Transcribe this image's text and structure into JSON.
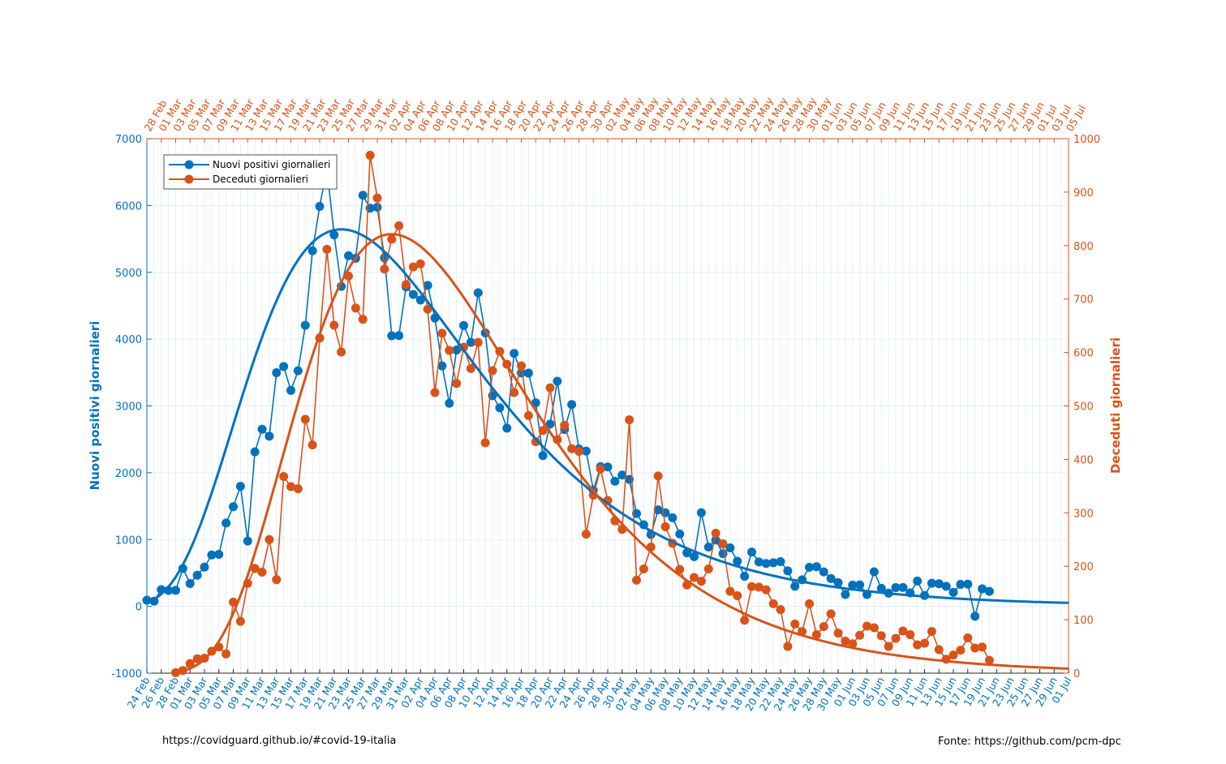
{
  "chart_data": {
    "type": "line",
    "ylabel_left": "Nuovi positivi giornalieri",
    "ylabel_right": "Deceduti giornalieri",
    "ylim_left": [
      -1000,
      7000
    ],
    "yticks_left": [
      -1000,
      0,
      1000,
      2000,
      3000,
      4000,
      5000,
      6000,
      7000
    ],
    "ylim_right": [
      0,
      1000
    ],
    "yticks_right": [
      0,
      100,
      200,
      300,
      400,
      500,
      600,
      700,
      800,
      900,
      1000
    ],
    "bottom_axis": {
      "start_date": "2020-02-24",
      "end_date": "2020-07-01",
      "tick_labels": [
        "24 Feb",
        "26 Feb",
        "28 Feb",
        "01 Mar",
        "03 Mar",
        "05 Mar",
        "07 Mar",
        "09 Mar",
        "11 Mar",
        "13 Mar",
        "15 Mar",
        "17 Mar",
        "19 Mar",
        "21 Mar",
        "23 Mar",
        "25 Mar",
        "27 Mar",
        "29 Mar",
        "31 Mar",
        "02 Apr",
        "04 Apr",
        "06 Apr",
        "08 Apr",
        "10 Apr",
        "12 Apr",
        "14 Apr",
        "16 Apr",
        "18 Apr",
        "20 Apr",
        "22 Apr",
        "24 Apr",
        "26 Apr",
        "28 Apr",
        "30 Apr",
        "02 May",
        "04 May",
        "06 May",
        "08 May",
        "10 May",
        "12 May",
        "14 May",
        "16 May",
        "18 May",
        "20 May",
        "22 May",
        "24 May",
        "26 May",
        "28 May",
        "30 May",
        "01 Jun",
        "03 Jun",
        "05 Jun",
        "07 Jun",
        "09 Jun",
        "11 Jun",
        "13 Jun",
        "15 Jun",
        "17 Jun",
        "19 Jun",
        "21 Jun",
        "23 Jun",
        "25 Jun",
        "27 Jun",
        "29 Jun",
        "01 Jul"
      ]
    },
    "top_axis": {
      "start_date": "2020-02-28",
      "end_date": "2020-07-05",
      "tick_labels": [
        "28 Feb",
        "01 Mar",
        "03 Mar",
        "05 Mar",
        "07 Mar",
        "09 Mar",
        "11 Mar",
        "13 Mar",
        "15 Mar",
        "17 Mar",
        "19 Mar",
        "21 Mar",
        "23 Mar",
        "25 Mar",
        "27 Mar",
        "29 Mar",
        "31 Mar",
        "02 Apr",
        "04 Apr",
        "06 Apr",
        "08 Apr",
        "10 Apr",
        "12 Apr",
        "14 Apr",
        "16 Apr",
        "18 Apr",
        "20 Apr",
        "22 Apr",
        "24 Apr",
        "26 Apr",
        "28 Apr",
        "30 Apr",
        "02 May",
        "04 May",
        "06 May",
        "08 May",
        "10 May",
        "12 May",
        "14 May",
        "16 May",
        "18 May",
        "20 May",
        "22 May",
        "24 May",
        "26 May",
        "28 May",
        "30 May",
        "01 Jun",
        "03 Jun",
        "05 Jun",
        "07 Jun",
        "09 Jun",
        "11 Jun",
        "13 Jun",
        "15 Jun",
        "17 Jun",
        "19 Jun",
        "21 Jun",
        "23 Jun",
        "25 Jun",
        "27 Jun",
        "29 Jun",
        "01 Jul",
        "03 Jul",
        "05 Jul"
      ]
    },
    "grid": true,
    "legend_placement": "top-left",
    "series": [
      {
        "name": "Nuovi positivi giornalieri",
        "color": "#0072BD",
        "axis": "left",
        "marker": "circle",
        "values": [
          93,
          78,
          250,
          238,
          240,
          566,
          342,
          466,
          587,
          769,
          778,
          1247,
          1492,
          1797,
          977,
          2313,
          2651,
          2547,
          3497,
          3590,
          3233,
          3526,
          4207,
          5322,
          5986,
          6557,
          5560,
          4789,
          5249,
          5210,
          6153,
          5959,
          5974,
          5217,
          4050,
          4053,
          4782,
          4668,
          4585,
          4805,
          4316,
          3599,
          3039,
          3836,
          4204,
          3951,
          4694,
          4092,
          3153,
          2972,
          2667,
          3786,
          3493,
          3491,
          3047,
          2256,
          2729,
          3370,
          2646,
          3021,
          2357,
          2324,
          1739,
          2091,
          2086,
          1872,
          1965,
          1900,
          1389,
          1221,
          1075,
          1444,
          1401,
          1327,
          1083,
          802,
          744,
          1402,
          888,
          992,
          789,
          875,
          675,
          451,
          813,
          665,
          642,
          652,
          669,
          531,
          300,
          397,
          584,
          593,
          516,
          416,
          355,
          178,
          318,
          321,
          177,
          518,
          270,
          197,
          280,
          283,
          202,
          379,
          163,
          346,
          338,
          301,
          210,
          329,
          333,
          -148,
          262,
          224
        ]
      },
      {
        "name": "Deceduti giornalieri",
        "color": "#D95319",
        "axis": "right",
        "marker": "circle",
        "start_date": "2020-02-28",
        "values": [
          1,
          5,
          18,
          27,
          28,
          41,
          49,
          36,
          133,
          97,
          168,
          196,
          189,
          250,
          175,
          368,
          349,
          345,
          475,
          427,
          627,
          793,
          651,
          601,
          743,
          683,
          662,
          969,
          889,
          756,
          812,
          837,
          727,
          760,
          766,
          681,
          525,
          636,
          604,
          542,
          610,
          570,
          619,
          431,
          566,
          602,
          578,
          525,
          575,
          482,
          433,
          454,
          534,
          437,
          464,
          420,
          415,
          260,
          333,
          382,
          323,
          285,
          269,
          474,
          174,
          195,
          236,
          369,
          274,
          243,
          194,
          165,
          179,
          172,
          195,
          262,
          242,
          153,
          145,
          99,
          162,
          161,
          156,
          130,
          119,
          50,
          92,
          78,
          130,
          72,
          87,
          111,
          75,
          60,
          55,
          71,
          88,
          85,
          70,
          50,
          65,
          79,
          72,
          53,
          56,
          78,
          44,
          26,
          34,
          43,
          66,
          47,
          49,
          24
        ]
      }
    ]
  },
  "footer": {
    "left_text": "https://covidguard.github.io/#covid-19-italia",
    "right_text": "Fonte: https://github.com/pcm-dpc"
  }
}
